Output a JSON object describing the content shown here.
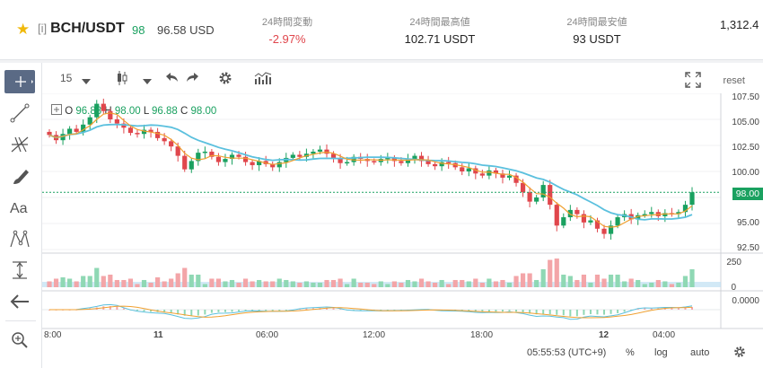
{
  "header": {
    "tag": "[i]",
    "pair": "BCH/USDT",
    "score": "98",
    "price": "96.58 USD",
    "stats": [
      {
        "label": "24時間変動",
        "value": "-2.97%",
        "negative": true
      },
      {
        "label": "24時間最高値",
        "value": "102.71 USDT",
        "negative": false
      },
      {
        "label": "24時間最安値",
        "value": "93 USDT",
        "negative": false
      },
      {
        "label": "",
        "value": "1,312.4",
        "negative": false
      }
    ]
  },
  "toolbar": {
    "interval": "15",
    "reset_label": "reset"
  },
  "legend": {
    "o_label": "O",
    "o": "96.88",
    "h_label": "H",
    "h": "98.00",
    "l_label": "L",
    "l": "96.88",
    "c_label": "C",
    "c": "98.00"
  },
  "price_axis": {
    "ticks": [
      "107.50",
      "105.00",
      "102.50",
      "100.00",
      "97.50",
      "95.00",
      "92.50"
    ],
    "last_price": "98.00"
  },
  "volume_axis": {
    "ticks": [
      "250",
      "0"
    ]
  },
  "macd_axis": {
    "ticks": [
      "0.0000"
    ]
  },
  "time_axis": [
    "8:00",
    "11",
    "06:00",
    "12:00",
    "18:00",
    "12",
    "04:00"
  ],
  "status": {
    "clock": "05:55:53 (UTC+9)",
    "percent": "%",
    "log": "log",
    "auto": "auto"
  },
  "colors": {
    "up": "#1aa160",
    "down": "#e0464c",
    "ma_slow": "#5bc0de",
    "ma_fast": "#f0a030",
    "accent": "#5a6a85",
    "star": "#f0b90b"
  },
  "chart_data": {
    "type": "candlestick",
    "interval": "15",
    "ylim": [
      92.5,
      107.5
    ],
    "closes": [
      103.5,
      103.0,
      103.6,
      104.1,
      103.8,
      104.5,
      105.2,
      106.5,
      105.8,
      105.0,
      104.6,
      104.2,
      103.7,
      103.6,
      104.0,
      103.8,
      103.2,
      102.9,
      102.4,
      101.5,
      100.2,
      101.0,
      101.8,
      101.9,
      101.4,
      100.9,
      101.2,
      101.6,
      101.4,
      100.9,
      100.6,
      101.0,
      100.7,
      100.4,
      100.9,
      101.3,
      101.6,
      101.4,
      101.7,
      101.9,
      102.1,
      101.7,
      101.3,
      100.8,
      100.9,
      101.4,
      101.2,
      101.0,
      100.9,
      101.2,
      101.3,
      101.0,
      100.8,
      101.2,
      101.5,
      101.0,
      100.7,
      100.5,
      100.9,
      100.8,
      100.4,
      100.0,
      100.3,
      99.8,
      99.6,
      100.1,
      99.8,
      99.4,
      99.6,
      98.9,
      98.0,
      97.1,
      97.5,
      98.7,
      96.8,
      94.8,
      95.6,
      96.3,
      95.9,
      95.1,
      95.3,
      94.5,
      94.0,
      94.8,
      95.6,
      95.9,
      95.4,
      95.8,
      95.9,
      96.1,
      95.7,
      96.0,
      95.9,
      96.1,
      96.8,
      98.0
    ],
    "volume_ylim": [
      0,
      250
    ],
    "macd_zero": "0.0000"
  }
}
